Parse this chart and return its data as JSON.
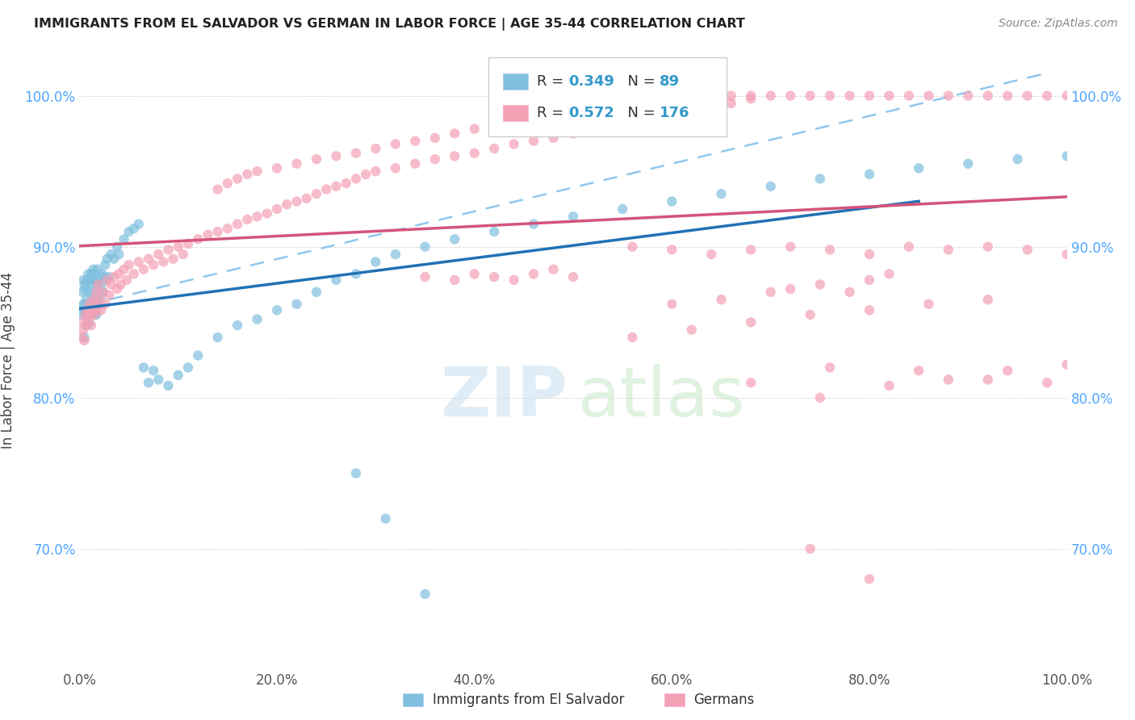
{
  "title": "IMMIGRANTS FROM EL SALVADOR VS GERMAN IN LABOR FORCE | AGE 35-44 CORRELATION CHART",
  "source": "Source: ZipAtlas.com",
  "ylabel": "In Labor Force | Age 35-44",
  "xlim": [
    0.0,
    1.0
  ],
  "ylim": [
    0.62,
    1.03
  ],
  "ytick_labels": [
    "70.0%",
    "80.0%",
    "90.0%",
    "100.0%"
  ],
  "ytick_values": [
    0.7,
    0.8,
    0.9,
    1.0
  ],
  "xtick_labels": [
    "0.0%",
    "20.0%",
    "40.0%",
    "60.0%",
    "80.0%",
    "100.0%"
  ],
  "xtick_values": [
    0.0,
    0.2,
    0.4,
    0.6,
    0.8,
    1.0
  ],
  "blue_R": 0.349,
  "blue_N": 89,
  "pink_R": 0.572,
  "pink_N": 176,
  "blue_color": "#7fbfdf",
  "pink_color": "#f4a0b5",
  "blue_line_color": "#2171b5",
  "pink_line_color": "#d4547a",
  "blue_scatter_x": [
    0.002,
    0.003,
    0.003,
    0.004,
    0.004,
    0.005,
    0.005,
    0.005,
    0.006,
    0.006,
    0.007,
    0.007,
    0.008,
    0.008,
    0.009,
    0.009,
    0.01,
    0.01,
    0.011,
    0.011,
    0.012,
    0.012,
    0.013,
    0.013,
    0.014,
    0.014,
    0.015,
    0.015,
    0.016,
    0.016,
    0.017,
    0.017,
    0.018,
    0.018,
    0.019,
    0.02,
    0.021,
    0.022,
    0.023,
    0.024,
    0.025,
    0.026,
    0.027,
    0.028,
    0.03,
    0.032,
    0.035,
    0.038,
    0.04,
    0.045,
    0.05,
    0.055,
    0.06,
    0.065,
    0.07,
    0.075,
    0.08,
    0.09,
    0.1,
    0.11,
    0.12,
    0.14,
    0.16,
    0.18,
    0.2,
    0.22,
    0.24,
    0.26,
    0.28,
    0.3,
    0.32,
    0.35,
    0.38,
    0.42,
    0.46,
    0.5,
    0.55,
    0.6,
    0.65,
    0.7,
    0.75,
    0.8,
    0.85,
    0.9,
    0.95,
    1.0,
    0.28,
    0.31,
    0.35
  ],
  "blue_scatter_y": [
    0.86,
    0.87,
    0.855,
    0.878,
    0.862,
    0.84,
    0.858,
    0.875,
    0.855,
    0.872,
    0.848,
    0.865,
    0.858,
    0.878,
    0.862,
    0.882,
    0.85,
    0.87,
    0.858,
    0.875,
    0.862,
    0.882,
    0.855,
    0.878,
    0.868,
    0.885,
    0.858,
    0.878,
    0.862,
    0.882,
    0.855,
    0.875,
    0.865,
    0.885,
    0.872,
    0.878,
    0.865,
    0.875,
    0.882,
    0.87,
    0.88,
    0.888,
    0.878,
    0.892,
    0.88,
    0.895,
    0.892,
    0.9,
    0.895,
    0.905,
    0.91,
    0.912,
    0.915,
    0.82,
    0.81,
    0.818,
    0.812,
    0.808,
    0.815,
    0.82,
    0.828,
    0.84,
    0.848,
    0.852,
    0.858,
    0.862,
    0.87,
    0.878,
    0.882,
    0.89,
    0.895,
    0.9,
    0.905,
    0.91,
    0.915,
    0.92,
    0.925,
    0.93,
    0.935,
    0.94,
    0.945,
    0.948,
    0.952,
    0.955,
    0.958,
    0.96,
    0.75,
    0.72,
    0.67
  ],
  "pink_scatter_x": [
    0.002,
    0.003,
    0.004,
    0.005,
    0.006,
    0.007,
    0.008,
    0.009,
    0.01,
    0.011,
    0.012,
    0.013,
    0.014,
    0.015,
    0.016,
    0.017,
    0.018,
    0.019,
    0.02,
    0.022,
    0.024,
    0.026,
    0.028,
    0.03,
    0.032,
    0.035,
    0.038,
    0.04,
    0.042,
    0.045,
    0.048,
    0.05,
    0.055,
    0.06,
    0.065,
    0.07,
    0.075,
    0.08,
    0.085,
    0.09,
    0.095,
    0.1,
    0.105,
    0.11,
    0.12,
    0.13,
    0.14,
    0.15,
    0.16,
    0.17,
    0.18,
    0.19,
    0.2,
    0.21,
    0.22,
    0.23,
    0.24,
    0.25,
    0.26,
    0.27,
    0.28,
    0.29,
    0.3,
    0.32,
    0.34,
    0.36,
    0.38,
    0.4,
    0.42,
    0.44,
    0.46,
    0.48,
    0.5,
    0.52,
    0.54,
    0.56,
    0.58,
    0.6,
    0.62,
    0.64,
    0.66,
    0.68,
    0.7,
    0.72,
    0.74,
    0.76,
    0.78,
    0.8,
    0.82,
    0.84,
    0.86,
    0.88,
    0.9,
    0.92,
    0.94,
    0.96,
    0.98,
    1.0,
    0.6,
    0.65,
    0.7,
    0.72,
    0.75,
    0.78,
    0.8,
    0.82,
    0.35,
    0.38,
    0.4,
    0.42,
    0.44,
    0.46,
    0.48,
    0.5,
    0.14,
    0.15,
    0.16,
    0.17,
    0.18,
    0.2,
    0.22,
    0.24,
    0.26,
    0.28,
    0.3,
    0.32,
    0.34,
    0.36,
    0.38,
    0.4,
    0.42,
    0.44,
    0.46,
    0.48,
    0.5,
    0.52,
    0.54,
    0.56,
    0.58,
    0.6,
    0.62,
    0.64,
    0.66,
    0.68,
    0.56,
    0.62,
    0.68,
    0.74,
    0.8,
    0.86,
    0.92,
    0.56,
    0.6,
    0.64,
    0.68,
    0.72,
    0.76,
    0.8,
    0.84,
    0.88,
    0.92,
    0.96,
    1.0,
    0.75,
    0.82,
    0.88,
    0.94,
    1.0,
    0.68,
    0.76,
    0.85,
    0.92,
    0.98,
    0.74,
    0.8
  ],
  "pink_scatter_y": [
    0.84,
    0.85,
    0.845,
    0.838,
    0.855,
    0.848,
    0.858,
    0.852,
    0.862,
    0.855,
    0.848,
    0.858,
    0.865,
    0.855,
    0.862,
    0.87,
    0.858,
    0.875,
    0.865,
    0.858,
    0.87,
    0.862,
    0.878,
    0.868,
    0.875,
    0.88,
    0.872,
    0.882,
    0.875,
    0.885,
    0.878,
    0.888,
    0.882,
    0.89,
    0.885,
    0.892,
    0.888,
    0.895,
    0.89,
    0.898,
    0.892,
    0.9,
    0.895,
    0.902,
    0.905,
    0.908,
    0.91,
    0.912,
    0.915,
    0.918,
    0.92,
    0.922,
    0.925,
    0.928,
    0.93,
    0.932,
    0.935,
    0.938,
    0.94,
    0.942,
    0.945,
    0.948,
    0.95,
    0.952,
    0.955,
    0.958,
    0.96,
    0.962,
    0.965,
    0.968,
    0.97,
    0.972,
    0.975,
    0.978,
    0.98,
    0.982,
    0.985,
    0.988,
    0.99,
    0.992,
    0.995,
    0.998,
    1.0,
    1.0,
    1.0,
    1.0,
    1.0,
    1.0,
    1.0,
    1.0,
    1.0,
    1.0,
    1.0,
    1.0,
    1.0,
    1.0,
    1.0,
    1.0,
    0.862,
    0.865,
    0.87,
    0.872,
    0.875,
    0.87,
    0.878,
    0.882,
    0.88,
    0.878,
    0.882,
    0.88,
    0.878,
    0.882,
    0.885,
    0.88,
    0.938,
    0.942,
    0.945,
    0.948,
    0.95,
    0.952,
    0.955,
    0.958,
    0.96,
    0.962,
    0.965,
    0.968,
    0.97,
    0.972,
    0.975,
    0.978,
    0.98,
    0.982,
    0.985,
    0.988,
    0.99,
    0.992,
    0.995,
    0.998,
    1.0,
    1.0,
    1.0,
    1.0,
    1.0,
    1.0,
    0.84,
    0.845,
    0.85,
    0.855,
    0.858,
    0.862,
    0.865,
    0.9,
    0.898,
    0.895,
    0.898,
    0.9,
    0.898,
    0.895,
    0.9,
    0.898,
    0.9,
    0.898,
    0.895,
    0.8,
    0.808,
    0.812,
    0.818,
    0.822,
    0.81,
    0.82,
    0.818,
    0.812,
    0.81,
    0.7,
    0.68
  ],
  "watermark_zip_color": "#c8dff0",
  "watermark_atlas_color": "#c8e8c8",
  "background_color": "#ffffff",
  "grid_color": "#dddddd",
  "tick_color": "#4da6ff",
  "dashed_line_color": "#74b9e8"
}
